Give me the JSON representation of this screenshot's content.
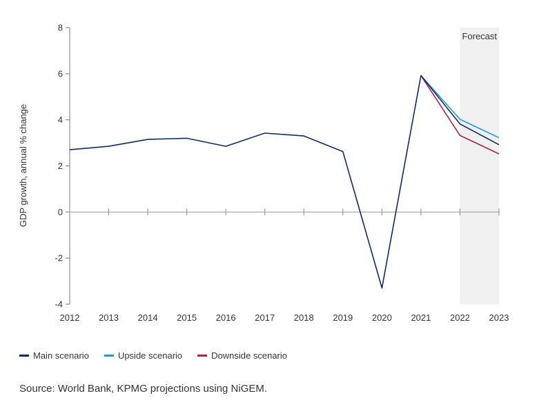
{
  "chart_data": {
    "type": "line",
    "ylabel": "GDP growth, annual % change",
    "x": [
      "2012",
      "2013",
      "2014",
      "2015",
      "2016",
      "2017",
      "2018",
      "2019",
      "2020",
      "2021",
      "2022",
      "2023"
    ],
    "ylim": [
      -4,
      8
    ],
    "yticks": [
      -4,
      -2,
      0,
      2,
      4,
      6,
      8
    ],
    "forecast": {
      "label": "Forecast",
      "start": "2022",
      "end": "2023",
      "color": "#f0f0f0"
    },
    "series": [
      {
        "name": "Main scenario",
        "color": "#0c2a6b",
        "values": [
          2.7,
          2.85,
          3.15,
          3.2,
          2.85,
          3.42,
          3.3,
          2.62,
          -3.3,
          5.92,
          3.82,
          2.92
        ]
      },
      {
        "name": "Upside scenario",
        "color": "#1e9ad6",
        "values": [
          null,
          null,
          null,
          null,
          null,
          null,
          null,
          null,
          null,
          5.92,
          4.02,
          3.22
        ]
      },
      {
        "name": "Downside scenario",
        "color": "#b0204e",
        "values": [
          null,
          null,
          null,
          null,
          null,
          null,
          null,
          null,
          null,
          5.92,
          3.32,
          2.52
        ]
      }
    ],
    "legend_position": "bottom-left",
    "grid": false
  },
  "source": "Source: World Bank, KPMG projections using NiGEM."
}
